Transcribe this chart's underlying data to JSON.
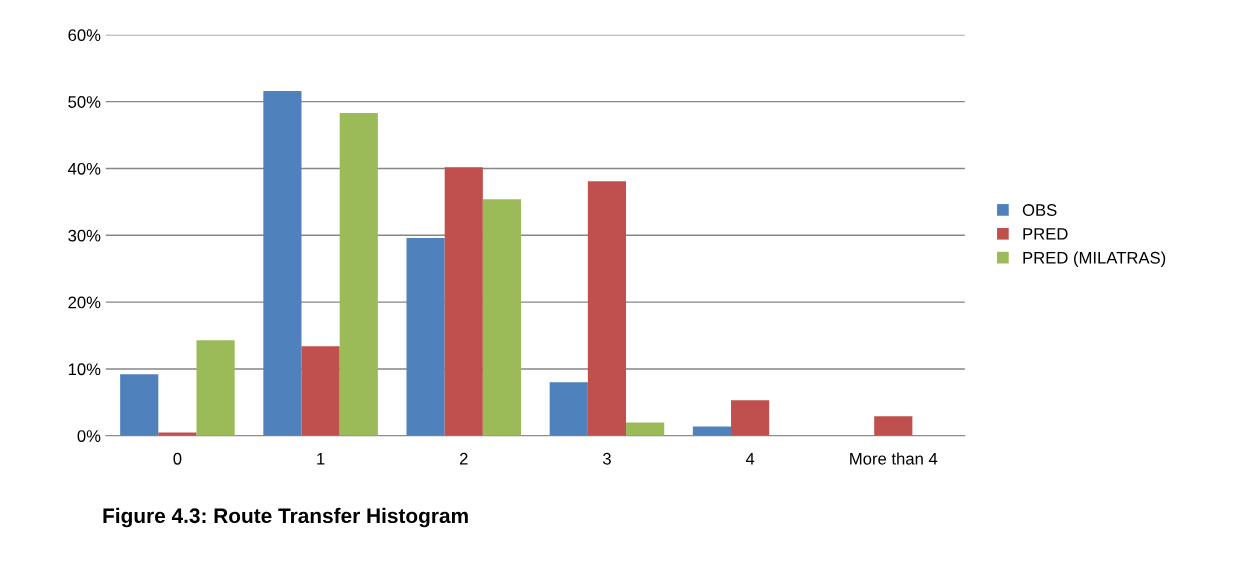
{
  "chart_data": {
    "type": "bar",
    "title": "Figure 4.3: Route Transfer Histogram",
    "categories": [
      "0",
      "1",
      "2",
      "3",
      "4",
      "More than 4"
    ],
    "series": [
      {
        "name": "OBS",
        "color": "#4f81bd",
        "values": [
          9.2,
          51.6,
          29.6,
          8.0,
          1.4,
          0
        ]
      },
      {
        "name": "PRED",
        "color": "#c0504d",
        "values": [
          0.5,
          13.4,
          40.2,
          38.1,
          5.3,
          2.9
        ]
      },
      {
        "name": "PRED (MILATRAS)",
        "color": "#9bbb59",
        "values": [
          14.3,
          48.3,
          35.4,
          2.0,
          0,
          0
        ]
      }
    ],
    "ylim": [
      0,
      60
    ],
    "yticks": [
      {
        "value": 0,
        "label": "0%"
      },
      {
        "value": 10,
        "label": "10%"
      },
      {
        "value": 20,
        "label": "20%"
      },
      {
        "value": 30,
        "label": "30%"
      },
      {
        "value": 40,
        "label": "40%"
      },
      {
        "value": 50,
        "label": "50%"
      },
      {
        "value": 60,
        "label": "60%"
      }
    ],
    "grid": "y",
    "legend": "right"
  }
}
